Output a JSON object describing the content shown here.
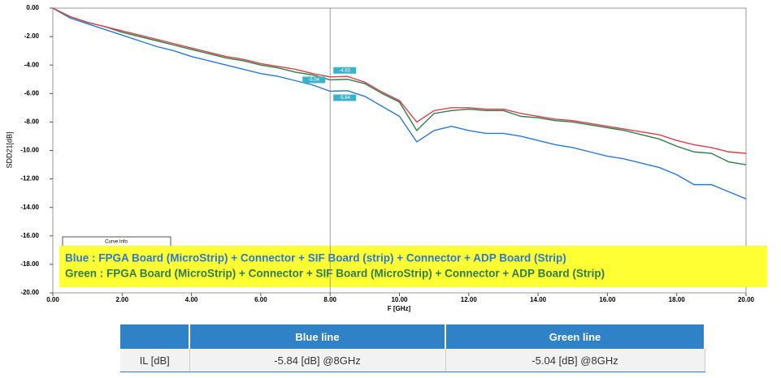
{
  "chart_data": {
    "type": "line",
    "y_label": "SDD21[dB]",
    "x_label": "F [GHz]",
    "xlim": [
      0,
      20
    ],
    "ylim": [
      -20,
      0
    ],
    "xticks": [
      {
        "value": 0,
        "label": "0.00"
      },
      {
        "value": 2,
        "label": "2.00"
      },
      {
        "value": 4,
        "label": "4.00"
      },
      {
        "value": 6,
        "label": "6.00"
      },
      {
        "value": 8,
        "label": "8.00"
      },
      {
        "value": 10,
        "label": "10.00"
      },
      {
        "value": 12,
        "label": "12.00"
      },
      {
        "value": 14,
        "label": "14.00"
      },
      {
        "value": 16,
        "label": "16.00"
      },
      {
        "value": 18,
        "label": "18.00"
      },
      {
        "value": 20,
        "label": "20.00"
      }
    ],
    "yticks": [
      {
        "value": 0,
        "label": "0.00"
      },
      {
        "value": -2,
        "label": "-2.00"
      },
      {
        "value": -4,
        "label": "-4.00"
      },
      {
        "value": -6,
        "label": "-6.00"
      },
      {
        "value": -8,
        "label": "-8.00"
      },
      {
        "value": -10,
        "label": "-10.00"
      },
      {
        "value": -12,
        "label": "-12.00"
      },
      {
        "value": -14,
        "label": "-14.00"
      },
      {
        "value": -16,
        "label": "-16.00"
      },
      {
        "value": -18,
        "label": "-18.00"
      },
      {
        "value": -20,
        "label": "-20.00"
      }
    ],
    "grid": true,
    "x": [
      0,
      0.5,
      1,
      1.5,
      2,
      2.5,
      3,
      3.5,
      4,
      4.5,
      5,
      5.5,
      6,
      6.5,
      7,
      7.5,
      8,
      8.5,
      9,
      9.5,
      10,
      10.5,
      11,
      11.5,
      12,
      12.5,
      13,
      13.5,
      14,
      14.5,
      15,
      15.5,
      16,
      16.5,
      17,
      17.5,
      18,
      18.5,
      19,
      19.5,
      20
    ],
    "series": [
      {
        "name": "Blue : FPGA Board (MicroStrip) + Connector + SIF Board (strip) + Connector + ADP Board (Strip)",
        "color": "#2a78d0",
        "values": [
          0,
          -0.7,
          -1.1,
          -1.5,
          -1.9,
          -2.3,
          -2.7,
          -3.0,
          -3.4,
          -3.7,
          -4.0,
          -4.3,
          -4.6,
          -4.8,
          -5.1,
          -5.4,
          -5.84,
          -5.8,
          -6.2,
          -6.9,
          -7.6,
          -9.4,
          -8.6,
          -8.3,
          -8.6,
          -8.8,
          -8.8,
          -9.0,
          -9.3,
          -9.6,
          -9.8,
          -10.1,
          -10.4,
          -10.6,
          -10.9,
          -11.2,
          -11.7,
          -12.4,
          -12.4,
          -12.9,
          -13.4
        ]
      },
      {
        "name": "Green : FPGA Board (MicroStrip) + Connector + SIF Board (MicroStrip) + Connector + ADP Board (Strip)",
        "color": "#2e7d4a",
        "values": [
          0,
          -0.6,
          -1.0,
          -1.3,
          -1.7,
          -2.0,
          -2.3,
          -2.6,
          -2.9,
          -3.2,
          -3.5,
          -3.7,
          -4.0,
          -4.2,
          -4.5,
          -4.7,
          -5.04,
          -5.0,
          -5.3,
          -6.0,
          -6.6,
          -8.6,
          -7.4,
          -7.2,
          -7.1,
          -7.2,
          -7.2,
          -7.6,
          -7.7,
          -7.9,
          -8.0,
          -8.2,
          -8.4,
          -8.6,
          -8.9,
          -9.2,
          -9.7,
          -10.1,
          -10.2,
          -10.8,
          -11.0
        ]
      },
      {
        "color": "#d8404a",
        "values": [
          0,
          -0.6,
          -1.0,
          -1.3,
          -1.6,
          -1.9,
          -2.2,
          -2.5,
          -2.8,
          -3.1,
          -3.4,
          -3.6,
          -3.9,
          -4.1,
          -4.3,
          -4.6,
          -4.83,
          -4.8,
          -5.2,
          -5.9,
          -6.5,
          -8.0,
          -7.2,
          -7.0,
          -7.0,
          -7.1,
          -7.1,
          -7.4,
          -7.6,
          -7.8,
          -7.9,
          -8.1,
          -8.3,
          -8.5,
          -8.7,
          -8.9,
          -9.3,
          -9.6,
          -9.8,
          -10.1,
          -10.2
        ]
      }
    ],
    "markers": [
      {
        "x": 8,
        "y": -5.04,
        "label": "-5.04"
      },
      {
        "x": 8,
        "y": -4.83,
        "label": "-4.83"
      },
      {
        "x": 8,
        "y": -5.84,
        "label": "-5.84"
      }
    ],
    "curve_info": "Curve Info"
  },
  "table": {
    "header": [
      "Blue line",
      "Green line"
    ],
    "rows": [
      [
        "IL [dB]",
        "-5.84 [dB] @8GHz",
        "-5.04 [dB] @8GHz"
      ]
    ]
  }
}
